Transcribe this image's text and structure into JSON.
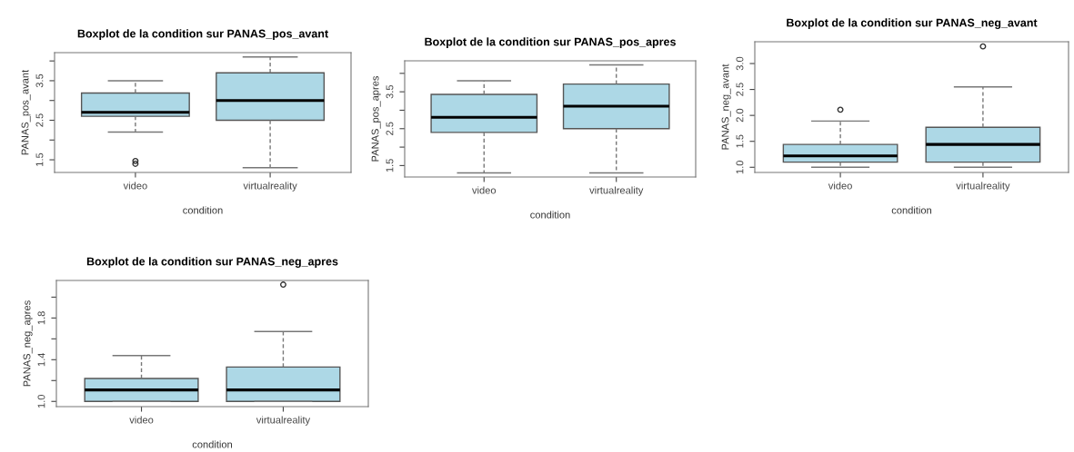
{
  "chart_data": [
    {
      "type": "box",
      "title": "Boxplot de la condition sur PANAS_pos_avant",
      "xlabel": "condition",
      "ylabel": "PANAS_pos_avant",
      "categories": [
        "video",
        "virtualreality"
      ],
      "color": "#add8e6",
      "boxes": [
        {
          "low": 2.2,
          "q1": 2.6,
          "median": 2.7,
          "q3": 3.19,
          "high": 3.5,
          "outliers": [
            1.4,
            1.47
          ]
        },
        {
          "low": 1.3,
          "q1": 2.5,
          "median": 3.0,
          "q3": 3.7,
          "high": 4.1
        }
      ],
      "ylim": [
        1.18,
        4.21
      ],
      "yticks": [
        1.5,
        {
          "value": 2.0,
          "label": null
        },
        2.5,
        {
          "value": 3.0,
          "label": null
        },
        3.5,
        {
          "value": 4.0,
          "label": null
        }
      ]
    },
    {
      "type": "box",
      "title": "Boxplot de la condition sur PANAS_pos_apres",
      "xlabel": "condition",
      "ylabel": "PANAS_pos_apres",
      "categories": [
        "video",
        "virtualreality"
      ],
      "color": "#add8e6",
      "boxes": [
        {
          "low": 1.3,
          "q1": 2.4,
          "median": 2.81,
          "q3": 3.43,
          "high": 3.8
        },
        {
          "low": 1.3,
          "q1": 2.5,
          "median": 3.11,
          "q3": 3.71,
          "high": 4.23
        }
      ],
      "ylim": [
        1.19,
        4.34
      ],
      "yticks": [
        1.5,
        {
          "value": 2.0,
          "label": null
        },
        2.5,
        {
          "value": 3.0,
          "label": null
        },
        3.5,
        {
          "value": 4.0,
          "label": null
        }
      ]
    },
    {
      "type": "box",
      "title": "Boxplot de la condition sur PANAS_neg_avant",
      "xlabel": "condition",
      "ylabel": "PANAS_neg_avant",
      "categories": [
        "video",
        "virtualreality"
      ],
      "color": "#add8e6",
      "boxes": [
        {
          "low": 1.0,
          "q1": 1.1,
          "median": 1.22,
          "q3": 1.44,
          "high": 1.89,
          "outliers": [
            2.11
          ]
        },
        {
          "low": 1.0,
          "q1": 1.1,
          "median": 1.44,
          "q3": 1.77,
          "high": 2.55,
          "outliers": [
            3.33
          ]
        }
      ],
      "ylim": [
        0.9,
        3.42
      ],
      "yticks": [
        {
          "value": 1,
          "label": "1.0"
        },
        1.5,
        {
          "value": 2,
          "label": "2.0"
        },
        2.5,
        {
          "value": 3,
          "label": "3.0"
        }
      ]
    },
    {
      "type": "box",
      "title": "Boxplot de la condition sur PANAS_neg_apres",
      "xlabel": "condition",
      "ylabel": "PANAS_neg_apres",
      "categories": [
        "video",
        "virtualreality"
      ],
      "color": "#add8e6",
      "boxes": [
        {
          "low": 1.0,
          "q1": 1.0,
          "median": 1.11,
          "q3": 1.22,
          "high": 1.44
        },
        {
          "low": 1.0,
          "q1": 1.0,
          "median": 1.11,
          "q3": 1.33,
          "high": 1.67,
          "outliers": [
            2.12
          ]
        }
      ],
      "ylim": [
        0.95,
        2.16
      ],
      "yticks": [
        {
          "value": 1,
          "label": "1.0"
        },
        {
          "value": 1.2,
          "label": null
        },
        1.4,
        {
          "value": 1.6,
          "label": null
        },
        1.8,
        {
          "value": 2.0,
          "label": null
        }
      ]
    }
  ]
}
